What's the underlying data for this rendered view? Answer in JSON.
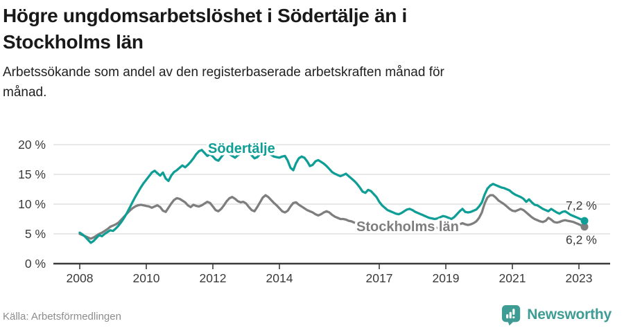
{
  "header": {
    "title_lines": [
      "Högre ungdomsarbetslöshet i Södertälje än i",
      "Stockholms län"
    ],
    "subtitle_lines": [
      "Arbetssökande som andel av den registerbaserade arbetskraften månad för",
      "månad."
    ]
  },
  "footer": {
    "source": "Källa: Arbetsförmedlingen",
    "brand": "Newsworthy"
  },
  "colors": {
    "soedertaelje_teal": "#0f9e96",
    "stockholm_gray": "#7e7e7e",
    "brand_teal": "#3e9c95",
    "gridline": "#d9d9d9",
    "axis": "#3a3a3a"
  },
  "chart_data": {
    "type": "line",
    "title": "Högre ungdomsarbetslöshet i Södertälje än i Stockholms län",
    "subtitle": "Arbetssökande som andel av den registerbaserade arbetskraften månad för månad.",
    "unit": "%",
    "x_start_year": 2008,
    "x_months_per_point": 1,
    "ylim": [
      0,
      20
    ],
    "grid": true,
    "yticks": [
      {
        "v": 0,
        "label": "0 %"
      },
      {
        "v": 5,
        "label": "5 %"
      },
      {
        "v": 10,
        "label": "10 %"
      },
      {
        "v": 15,
        "label": "15 %"
      },
      {
        "v": 20,
        "label": "20 %"
      }
    ],
    "xticks": [
      {
        "v": 2008,
        "label": "2008"
      },
      {
        "v": 2010,
        "label": "2010"
      },
      {
        "v": 2012,
        "label": "2012"
      },
      {
        "v": 2014,
        "label": "2014"
      },
      {
        "v": 2017,
        "label": "2017"
      },
      {
        "v": 2019,
        "label": "2019"
      },
      {
        "v": 2021,
        "label": "2021"
      },
      {
        "v": 2023,
        "label": "2023"
      }
    ],
    "series": [
      {
        "name": "Södertälje",
        "color": "#0f9e96",
        "end_label": "7,2 %",
        "values": [
          5.2,
          4.9,
          4.5,
          4.0,
          3.5,
          3.8,
          4.3,
          4.8,
          4.6,
          5.0,
          5.3,
          5.6,
          5.5,
          5.9,
          6.4,
          7.0,
          7.7,
          8.5,
          9.4,
          10.3,
          11.2,
          12.0,
          12.8,
          13.5,
          14.1,
          14.7,
          15.3,
          15.6,
          15.2,
          14.8,
          15.3,
          14.3,
          13.9,
          14.8,
          15.4,
          15.7,
          16.1,
          16.5,
          16.2,
          16.6,
          17.1,
          17.7,
          18.4,
          18.9,
          19.1,
          18.6,
          18.1,
          18.4,
          18.0,
          17.5,
          17.3,
          17.9,
          18.5,
          18.9,
          18.4,
          18.1,
          17.8,
          18.2,
          18.5,
          18.7,
          18.9,
          18.6,
          18.2,
          17.7,
          17.9,
          18.4,
          18.8,
          19.0,
          18.7,
          18.3,
          18.0,
          17.9,
          17.8,
          18.0,
          18.1,
          17.3,
          16.1,
          15.7,
          16.9,
          17.7,
          18.0,
          17.8,
          17.2,
          16.4,
          16.6,
          17.2,
          17.4,
          17.1,
          16.8,
          16.4,
          15.9,
          15.4,
          15.1,
          14.9,
          14.7,
          14.9,
          15.1,
          14.7,
          14.3,
          13.9,
          13.4,
          12.8,
          12.1,
          11.9,
          12.4,
          12.2,
          11.7,
          11.2,
          10.4,
          9.8,
          9.4,
          9.0,
          8.8,
          8.6,
          8.4,
          8.3,
          8.5,
          8.8,
          9.1,
          9.2,
          9.0,
          8.7,
          8.5,
          8.3,
          8.1,
          7.9,
          7.7,
          7.6,
          7.5,
          7.6,
          7.8,
          8.0,
          7.9,
          7.7,
          7.5,
          7.8,
          8.3,
          8.8,
          9.2,
          8.7,
          8.6,
          8.7,
          8.9,
          9.1,
          9.6,
          10.3,
          11.6,
          12.6,
          13.1,
          13.4,
          13.2,
          13.0,
          12.8,
          12.7,
          12.5,
          12.3,
          11.9,
          11.6,
          11.4,
          11.2,
          10.9,
          10.4,
          10.8,
          10.3,
          9.9,
          9.8,
          9.5,
          9.2,
          9.0,
          8.8,
          9.2,
          8.9,
          8.6,
          8.4,
          8.7,
          8.8,
          8.5,
          8.2,
          8.0,
          7.8,
          7.6,
          7.4,
          7.2
        ]
      },
      {
        "name": "Stockholms län",
        "color": "#7e7e7e",
        "end_label": "6,2 %",
        "values": [
          5.0,
          4.8,
          4.6,
          4.4,
          4.2,
          4.4,
          4.7,
          5.0,
          5.2,
          5.5,
          5.8,
          6.2,
          6.4,
          6.6,
          6.9,
          7.4,
          7.9,
          8.4,
          8.9,
          9.3,
          9.6,
          9.8,
          9.9,
          9.8,
          9.7,
          9.6,
          9.4,
          9.6,
          9.8,
          9.5,
          8.9,
          8.7,
          9.4,
          10.1,
          10.7,
          11.0,
          10.9,
          10.6,
          10.3,
          9.8,
          9.5,
          9.9,
          9.7,
          9.6,
          9.8,
          10.1,
          10.4,
          10.2,
          9.6,
          9.0,
          8.8,
          9.2,
          9.8,
          10.5,
          11.0,
          11.2,
          10.9,
          10.5,
          10.3,
          10.4,
          10.1,
          9.5,
          9.0,
          8.8,
          9.5,
          10.3,
          11.1,
          11.5,
          11.2,
          10.7,
          10.2,
          9.8,
          9.3,
          8.8,
          8.6,
          8.9,
          9.6,
          10.2,
          10.3,
          9.9,
          9.6,
          9.3,
          9.0,
          8.8,
          8.6,
          8.3,
          8.1,
          8.3,
          8.6,
          8.8,
          8.6,
          8.2,
          7.9,
          7.7,
          7.5,
          7.5,
          7.4,
          7.2,
          7.1,
          6.9,
          6.8,
          6.9,
          7.0,
          6.9,
          6.8,
          6.7,
          6.6,
          6.6,
          6.5,
          6.4,
          6.3,
          6.2,
          6.2,
          6.3,
          6.4,
          6.3,
          6.2,
          6.2,
          6.3,
          6.4,
          6.3,
          6.2,
          6.1,
          6.0,
          5.9,
          6.0,
          6.2,
          6.1,
          6.0,
          6.0,
          6.1,
          6.2,
          6.2,
          6.1,
          6.0,
          6.1,
          6.3,
          6.6,
          6.8,
          6.6,
          6.5,
          6.6,
          6.8,
          7.1,
          7.7,
          8.6,
          10.1,
          11.1,
          11.5,
          11.5,
          11.1,
          10.6,
          10.3,
          10.0,
          9.6,
          9.2,
          8.9,
          8.8,
          9.0,
          9.2,
          9.0,
          8.6,
          8.2,
          7.8,
          7.5,
          7.3,
          7.1,
          7.0,
          7.2,
          7.7,
          7.4,
          7.0,
          6.9,
          7.0,
          7.2,
          7.3,
          7.2,
          7.1,
          7.0,
          6.8,
          6.6,
          6.4,
          6.2
        ]
      }
    ]
  }
}
